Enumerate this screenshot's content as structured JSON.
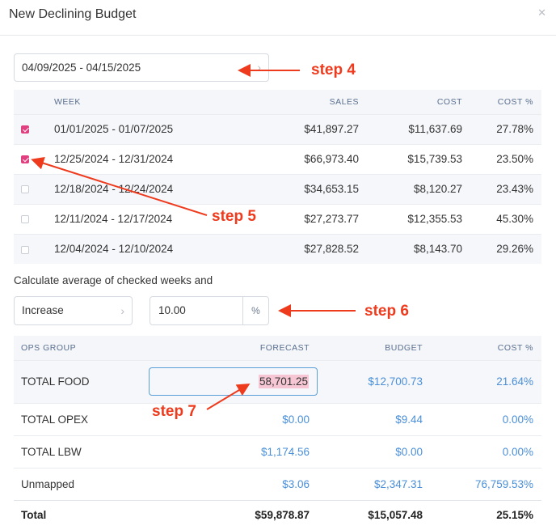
{
  "modal": {
    "title": "New Declining Budget",
    "close_glyph": "✕"
  },
  "date_range": {
    "value": "04/09/2025 - 04/15/2025",
    "chevron": "›"
  },
  "weeks_table": {
    "headers": {
      "week": "WEEK",
      "sales": "SALES",
      "cost": "COST",
      "cost_pct": "COST %"
    },
    "rows": [
      {
        "checked": true,
        "week": "01/01/2025 - 01/07/2025",
        "sales": "$41,897.27",
        "cost": "$11,637.69",
        "cost_pct": "27.78%"
      },
      {
        "checked": true,
        "week": "12/25/2024 - 12/31/2024",
        "sales": "$66,973.40",
        "cost": "$15,739.53",
        "cost_pct": "23.50%"
      },
      {
        "checked": false,
        "week": "12/18/2024 - 12/24/2024",
        "sales": "$34,653.15",
        "cost": "$8,120.27",
        "cost_pct": "23.43%"
      },
      {
        "checked": false,
        "week": "12/11/2024 - 12/17/2024",
        "sales": "$27,273.77",
        "cost": "$12,355.53",
        "cost_pct": "45.30%"
      },
      {
        "checked": false,
        "week": "12/04/2024 - 12/10/2024",
        "sales": "$27,828.52",
        "cost": "$8,143.70",
        "cost_pct": "29.26%"
      }
    ]
  },
  "calc": {
    "label": "Calculate average of checked weeks and",
    "mode": {
      "value": "Increase",
      "chevron": "›"
    },
    "percent": {
      "value": "10.00",
      "unit": "%"
    }
  },
  "ops_table": {
    "headers": {
      "group": "OPS GROUP",
      "forecast": "FORECAST",
      "budget": "BUDGET",
      "cost_pct": "COST %"
    },
    "rows": [
      {
        "group": "TOTAL FOOD",
        "forecast": "58,701.25",
        "budget": "$12,700.73",
        "cost_pct": "21.64%"
      },
      {
        "group": "TOTAL OPEX",
        "forecast": "$0.00",
        "budget": "$9.44",
        "cost_pct": "0.00%"
      },
      {
        "group": "TOTAL LBW",
        "forecast": "$1,174.56",
        "budget": "$0.00",
        "cost_pct": "0.00%"
      },
      {
        "group": "Unmapped",
        "forecast": "$3.06",
        "budget": "$2,347.31",
        "cost_pct": "76,759.53%"
      }
    ],
    "total": {
      "group": "Total",
      "forecast": "$59,878.87",
      "budget": "$15,057.48",
      "cost_pct": "25.15%"
    }
  },
  "annotations": {
    "step4": "step 4",
    "step5": "step 5",
    "step6": "step 6",
    "step7": "step 7",
    "color": "#ee3a1d"
  },
  "colors": {
    "checkbox_on": "#e0407f",
    "link": "#4a8fd8",
    "header_bg": "#f4f6f9"
  }
}
